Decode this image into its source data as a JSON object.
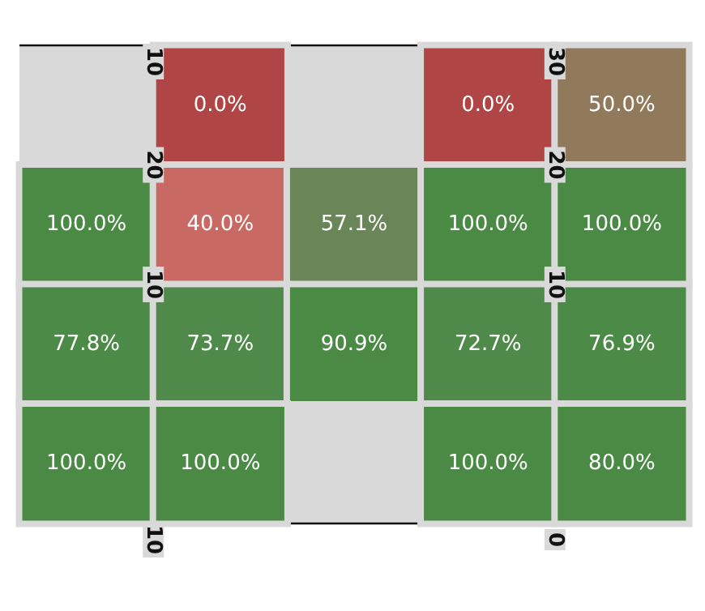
{
  "chart_data": {
    "type": "heatmap",
    "categories": [
      null,
      null,
      null,
      null,
      null
    ],
    "y_categories": [
      null,
      null,
      null,
      null
    ],
    "cells": [
      [
        null,
        0.0,
        null,
        0.0,
        50.0
      ],
      [
        100.0,
        40.0,
        57.1,
        100.0,
        100.0
      ],
      [
        77.8,
        73.7,
        90.9,
        72.7,
        76.9
      ],
      [
        100.0,
        100.0,
        null,
        100.0,
        80.0
      ]
    ],
    "cell_labels": [
      [
        null,
        "0.0%",
        null,
        "0.0%",
        "50.0%"
      ],
      [
        "100.0%",
        "40.0%",
        "57.1%",
        "100.0%",
        "100.0%"
      ],
      [
        "77.8%",
        "73.7%",
        "90.9%",
        "72.7%",
        "76.9%"
      ],
      [
        "100.0%",
        "100.0%",
        null,
        "100.0%",
        "80.0%"
      ]
    ],
    "annotations": [
      "10",
      "30",
      "20",
      "20",
      "10",
      "10",
      "10",
      "0"
    ]
  }
}
